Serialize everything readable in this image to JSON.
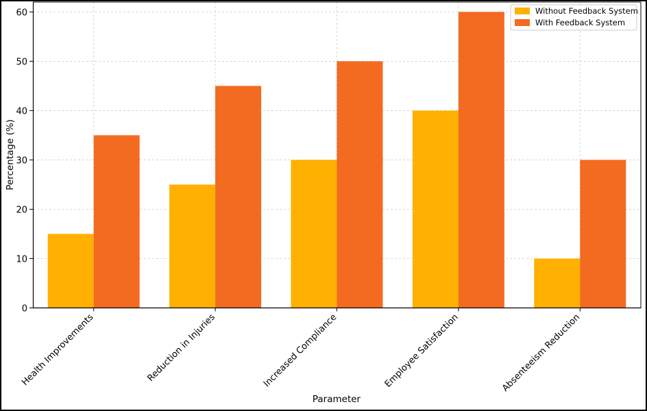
{
  "chart_data": {
    "type": "bar",
    "xlabel": "Parameter",
    "ylabel": "Percentage (%)",
    "categories": [
      "Health Improvements",
      "Reduction in Injuries",
      "Increased Compliance",
      "Employee Satisfaction",
      "Absenteeism Reduction"
    ],
    "series": [
      {
        "name": "Without Feedback System",
        "color": "#FFB000",
        "values": [
          15,
          25,
          30,
          40,
          10
        ]
      },
      {
        "name": "With Feedback System",
        "color": "#F26B21",
        "values": [
          35,
          45,
          50,
          60,
          30
        ]
      }
    ],
    "ylim": [
      0,
      62
    ],
    "yticks": [
      0,
      10,
      20,
      30,
      40,
      50,
      60
    ],
    "grid": true,
    "legend_position": "top-right"
  }
}
